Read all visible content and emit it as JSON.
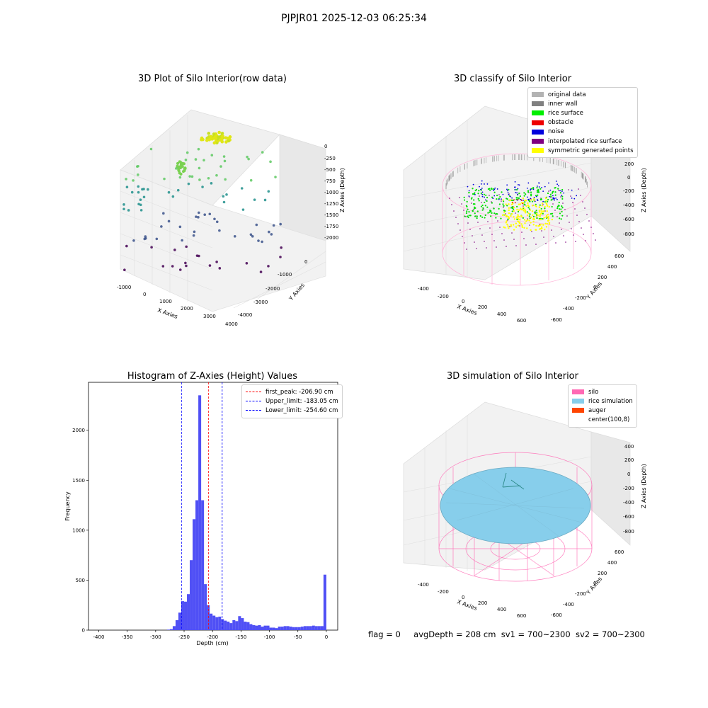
{
  "suptitle": "PJPJR01 2025-12-03 06:25:34",
  "panels": {
    "raw": {
      "title": "3D Plot of Silo Interior(row data)",
      "xlabel": "X Axies",
      "ylabel": "Y Axies",
      "zlabel": "Z Axies (Depth)",
      "xticks": [
        "-1000",
        "0",
        "1000",
        "2000",
        "3000",
        "4000"
      ],
      "yticks": [
        "0",
        "-1000",
        "-2000",
        "-3000",
        "-4000"
      ],
      "zticks": [
        "0",
        "-250",
        "-500",
        "-750",
        "-1000",
        "-1250",
        "-1500",
        "-1750",
        "-2000"
      ]
    },
    "classify": {
      "title": "3D classify of Silo Interior",
      "xlabel": "X Axies",
      "ylabel": "Y Axies",
      "zlabel": "Z Axies (Depth)",
      "xticks": [
        "-400",
        "-200",
        "0",
        "200",
        "400",
        "600"
      ],
      "yticks": [
        "600",
        "400",
        "200",
        "0",
        "-200",
        "-400",
        "-600"
      ],
      "zticks": [
        "200",
        "0",
        "-200",
        "-400",
        "-600",
        "-800"
      ],
      "legend": [
        {
          "label": "original data",
          "color": "#b3b3b3"
        },
        {
          "label": "inner wall",
          "color": "#808080"
        },
        {
          "label": "rice surface",
          "color": "#00ee00"
        },
        {
          "label": "obstacle",
          "color": "#ee0000"
        },
        {
          "label": "noise",
          "color": "#0000dd"
        },
        {
          "label": "interpolated rice surface",
          "color": "#800080"
        },
        {
          "label": "symmetric generated points",
          "color": "#ffff00"
        }
      ],
      "legend_placement": "upper-right"
    },
    "simulation": {
      "title": "3D simulation of Silo Interior",
      "xlabel": "X Axies",
      "ylabel": "Y Axies",
      "zlabel": "Z Axies (Depth)",
      "xticks": [
        "-400",
        "-200",
        "0",
        "200",
        "400",
        "600"
      ],
      "yticks": [
        "600",
        "400",
        "200",
        "0",
        "-200",
        "-400",
        "-600"
      ],
      "zticks": [
        "400",
        "200",
        "0",
        "-200",
        "-400",
        "-600",
        "-800"
      ],
      "legend": [
        {
          "label": "silo",
          "color": "#ff69b4"
        },
        {
          "label": "rice simulation",
          "color": "#87ceeb"
        },
        {
          "label": "auger",
          "color": "#ff4500"
        },
        {
          "label": "center(100,8)",
          "color": "#ffffff"
        }
      ]
    }
  },
  "chart_data": {
    "type": "bar",
    "title": "Histogram of Z-Axies (Height) Values",
    "xlabel": "Depth (cm)",
    "ylabel": "Frequency",
    "xlim": [
      -418,
      20
    ],
    "ylim": [
      0,
      2480
    ],
    "xticks": [
      -400,
      -350,
      -300,
      -250,
      -200,
      -150,
      -100,
      -50,
      0
    ],
    "yticks": [
      0,
      500,
      1000,
      1500,
      2000
    ],
    "bin_width": 5,
    "bins": [
      [
        -280,
        5
      ],
      [
        -275,
        10
      ],
      [
        -270,
        40
      ],
      [
        -265,
        100
      ],
      [
        -260,
        175
      ],
      [
        -255,
        290
      ],
      [
        -250,
        285
      ],
      [
        -245,
        360
      ],
      [
        -240,
        700
      ],
      [
        -235,
        1110
      ],
      [
        -230,
        1300
      ],
      [
        -225,
        2350
      ],
      [
        -220,
        1300
      ],
      [
        -215,
        460
      ],
      [
        -210,
        250
      ],
      [
        -205,
        165
      ],
      [
        -200,
        145
      ],
      [
        -195,
        130
      ],
      [
        -190,
        135
      ],
      [
        -185,
        110
      ],
      [
        -180,
        95
      ],
      [
        -175,
        85
      ],
      [
        -170,
        70
      ],
      [
        -165,
        100
      ],
      [
        -160,
        90
      ],
      [
        -155,
        140
      ],
      [
        -150,
        120
      ],
      [
        -145,
        85
      ],
      [
        -140,
        80
      ],
      [
        -135,
        60
      ],
      [
        -130,
        50
      ],
      [
        -125,
        45
      ],
      [
        -120,
        50
      ],
      [
        -115,
        35
      ],
      [
        -110,
        45
      ],
      [
        -105,
        45
      ],
      [
        -100,
        25
      ],
      [
        -95,
        25
      ],
      [
        -90,
        20
      ],
      [
        -85,
        35
      ],
      [
        -80,
        35
      ],
      [
        -75,
        40
      ],
      [
        -70,
        40
      ],
      [
        -65,
        35
      ],
      [
        -60,
        30
      ],
      [
        -55,
        30
      ],
      [
        -50,
        30
      ],
      [
        -45,
        35
      ],
      [
        -40,
        40
      ],
      [
        -35,
        40
      ],
      [
        -30,
        40
      ],
      [
        -25,
        45
      ],
      [
        -20,
        40
      ],
      [
        -15,
        40
      ],
      [
        -10,
        40
      ],
      [
        -5,
        555
      ]
    ],
    "bar_color": "#5050f5",
    "lines": [
      {
        "label": "first_peak: -206.90 cm",
        "x": -206.9,
        "color": "#ff0000"
      },
      {
        "label": "Upper_limit: -183.05 cm",
        "x": -183.05,
        "color": "#0000ff"
      },
      {
        "label": "Lower_limit: -254.60 cm",
        "x": -254.6,
        "color": "#0000ff"
      }
    ],
    "legend_placement": "upper-right"
  },
  "footer": {
    "flag": "flag = 0",
    "avgdepth": "avgDepth = 208 cm",
    "sv1": "sv1 = 700~2300",
    "sv2": "sv2 = 700~2300"
  }
}
